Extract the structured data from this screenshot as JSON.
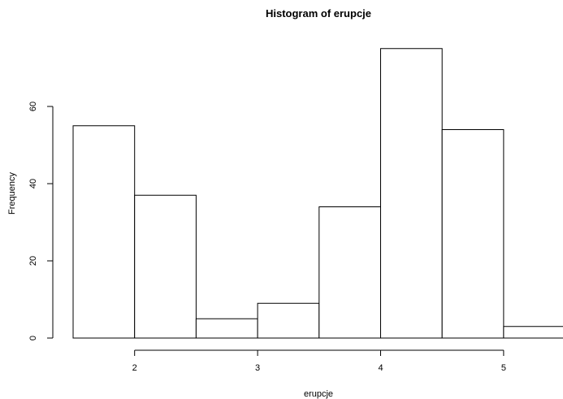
{
  "chart_data": {
    "type": "histogram",
    "title": "Histogram of erupcje",
    "xlabel": "erupcje",
    "ylabel": "Frequency",
    "bins": [
      {
        "start": 1.5,
        "end": 2.0,
        "count": 55
      },
      {
        "start": 2.0,
        "end": 2.5,
        "count": 37
      },
      {
        "start": 2.5,
        "end": 3.0,
        "count": 5
      },
      {
        "start": 3.0,
        "end": 3.5,
        "count": 9
      },
      {
        "start": 3.5,
        "end": 4.0,
        "count": 34
      },
      {
        "start": 4.0,
        "end": 4.5,
        "count": 75
      },
      {
        "start": 4.5,
        "end": 5.0,
        "count": 54
      },
      {
        "start": 5.0,
        "end": 5.5,
        "count": 3
      }
    ],
    "xlim": [
      1.5,
      5.5
    ],
    "ylim": [
      0,
      75
    ],
    "x_ticks": [
      2,
      3,
      4,
      5
    ],
    "y_ticks": [
      0,
      20,
      40,
      60
    ],
    "x_tick_labels": [
      "2",
      "3",
      "4",
      "5"
    ],
    "y_tick_labels": [
      "0",
      "20",
      "40",
      "60"
    ],
    "bar_fill": "#ffffff",
    "bar_stroke": "#000000",
    "grid": false
  }
}
